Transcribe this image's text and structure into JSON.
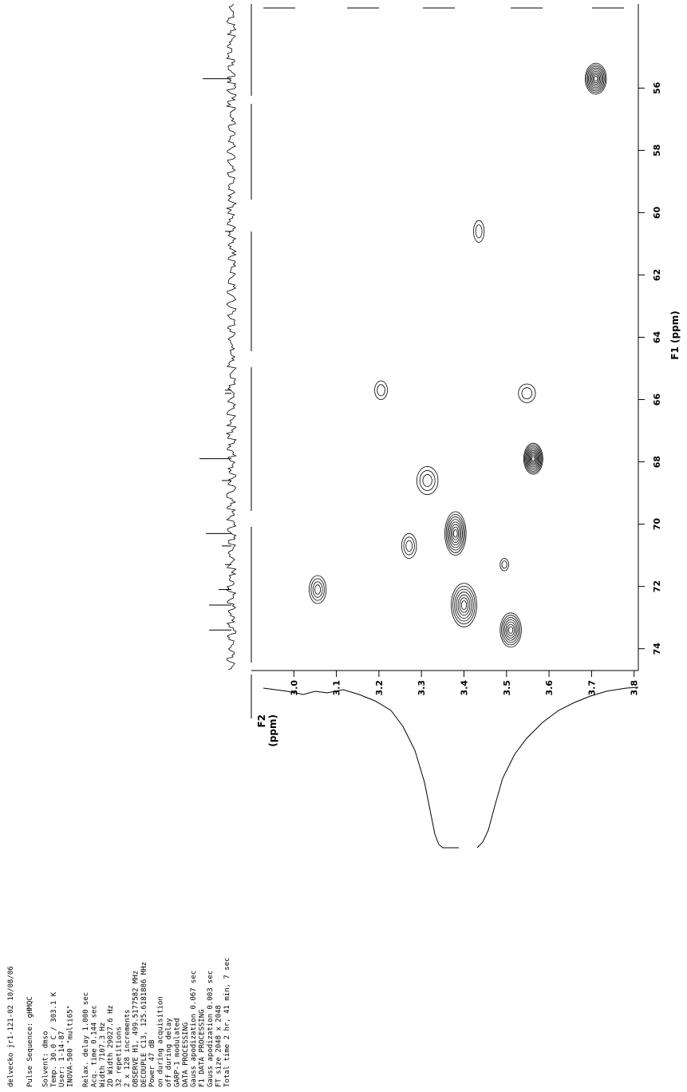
{
  "chart_data": {
    "type": "contour",
    "title": "delvecko jr1-121-02 10/08/06",
    "parameters": [
      "Pulse Sequence: gHMQC",
      "",
      "Solvent: dmso",
      "Temp. 30.0 C / 303.1 K",
      "User: 1-14-87",
      "INOVA-500 \"multi65\"",
      "",
      "Relax. delay 1.000 sec",
      "Acq. time 0.144 sec",
      "Width 7107.3 Hz",
      "2D Width 29027.6 Hz",
      "32 repetitions",
      "2 x 128 increments",
      "OBSERVE H1, 499.5177582 MHz",
      "DECOUPLE C13, 125.6181886 MHz",
      "Power 47 dB",
      "on during acquisition",
      "off during delay",
      "GARP-1 modulated",
      "DATA PROCESSING",
      "Gauss apodization 0.067 sec",
      "F1 DATA PROCESSING",
      "Gauss apodization 0.003 sec",
      "FT size 2048 x 2048",
      "Total time 2 hr, 41 min, 7 sec"
    ],
    "f1_label": "F1 (ppm)",
    "f2_label": "F2",
    "f2_unit": "(ppm)",
    "f1lim": [
      53.3,
      74.7
    ],
    "f1ticks": [
      56,
      58,
      60,
      62,
      64,
      66,
      68,
      70,
      72,
      74
    ],
    "f2lim": [
      2.9,
      3.81
    ],
    "f2ticks": [
      {
        "value": 3,
        "label": "3.0"
      },
      3.1,
      3.2,
      3.3,
      3.4,
      3.5,
      3.6,
      3.7,
      3.8
    ],
    "peaks": [
      {
        "f2": 3.71,
        "f1": 55.7,
        "width_f2": 0.05,
        "width_f1": 1.0,
        "levels": 9
      },
      {
        "f2": 3.435,
        "f1": 60.6,
        "width_f2": 0.025,
        "width_f1": 0.7,
        "levels": 2
      },
      {
        "f2": 3.205,
        "f1": 65.7,
        "width_f2": 0.03,
        "width_f1": 0.6,
        "levels": 2
      },
      {
        "f2": 3.548,
        "f1": 65.8,
        "width_f2": 0.04,
        "width_f1": 0.6,
        "levels": 2
      },
      {
        "f2": 3.563,
        "f1": 67.9,
        "width_f2": 0.045,
        "width_f1": 1.0,
        "levels": 10
      },
      {
        "f2": 3.314,
        "f1": 68.6,
        "width_f2": 0.05,
        "width_f1": 0.9,
        "levels": 3
      },
      {
        "f2": 3.38,
        "f1": 70.3,
        "width_f2": 0.05,
        "width_f1": 1.4,
        "levels": 8
      },
      {
        "f2": 3.271,
        "f1": 70.7,
        "width_f2": 0.035,
        "width_f1": 0.8,
        "levels": 3
      },
      {
        "f2": 3.4,
        "f1": 72.6,
        "width_f2": 0.06,
        "width_f1": 1.4,
        "levels": 7
      },
      {
        "f2": 3.495,
        "f1": 71.3,
        "width_f2": 0.02,
        "width_f1": 0.4,
        "levels": 2
      },
      {
        "f2": 3.056,
        "f1": 72.1,
        "width_f2": 0.04,
        "width_f1": 0.9,
        "levels": 4
      },
      {
        "f2": 3.51,
        "f1": 73.4,
        "width_f2": 0.05,
        "width_f1": 1.1,
        "levels": 7
      }
    ]
  }
}
